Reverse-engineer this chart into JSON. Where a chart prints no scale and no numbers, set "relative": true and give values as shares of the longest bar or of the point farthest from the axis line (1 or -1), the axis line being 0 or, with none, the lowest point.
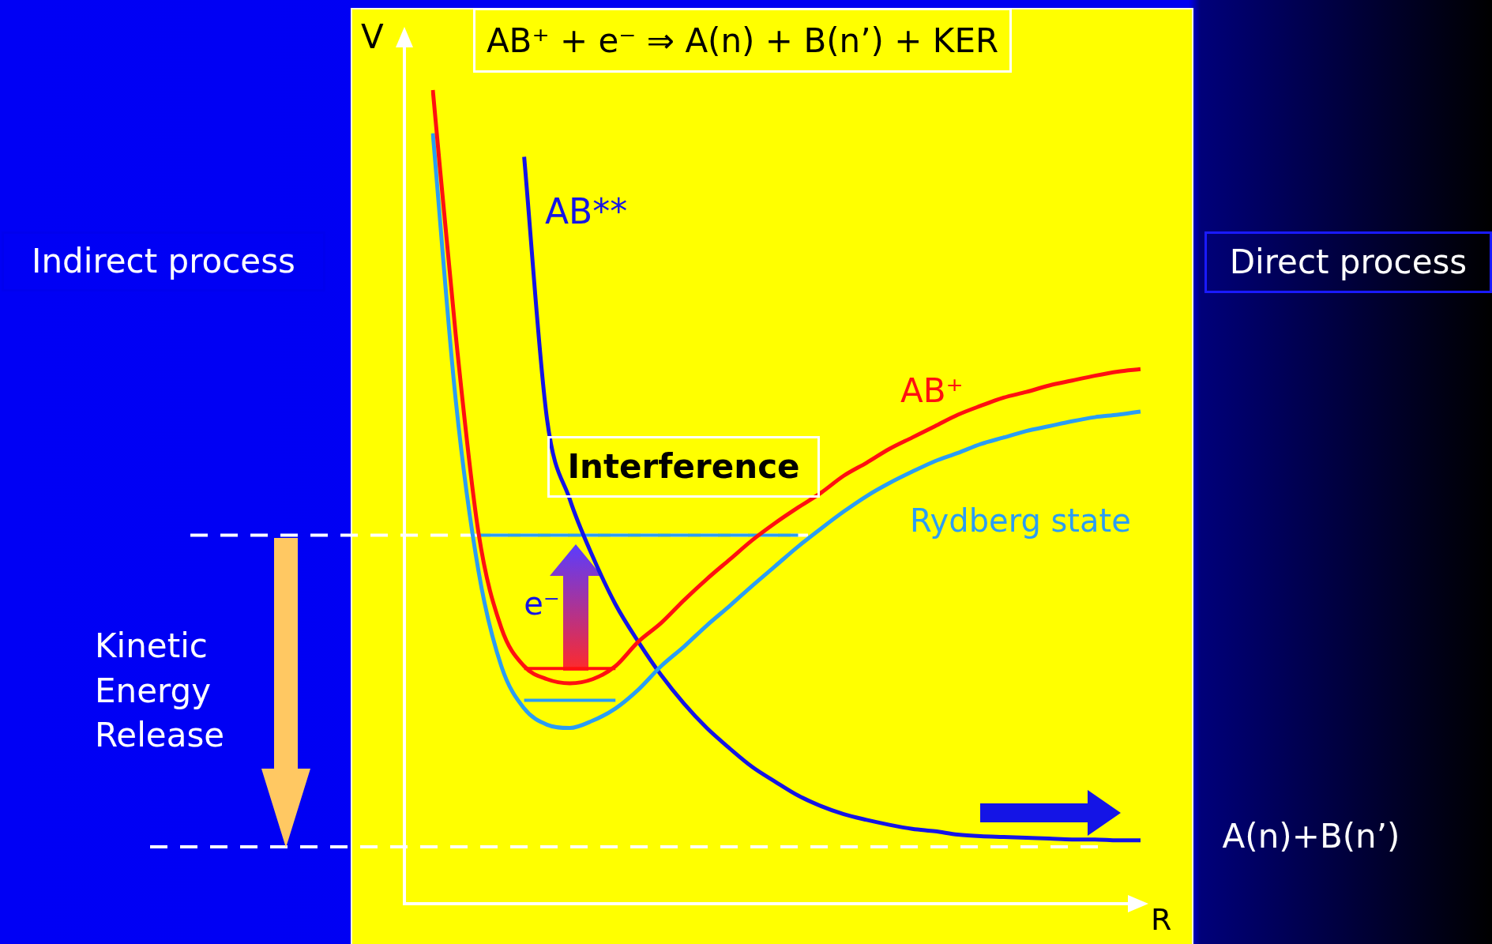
{
  "chart_data": {
    "type": "line",
    "relative": true,
    "title": "AB⁺ + e⁻ ⇒ A(n) + B(n’) + KER",
    "xlabel": "R",
    "ylabel": "V",
    "marker": "none",
    "line_style": "solid",
    "legend": false,
    "categories": [
      null,
      null,
      null,
      null,
      null,
      null,
      null,
      null,
      null,
      null,
      null,
      null,
      null,
      null,
      null,
      null,
      null,
      null,
      null,
      null,
      null,
      null,
      null,
      null,
      null,
      null,
      null,
      null,
      null,
      null,
      null,
      null
    ],
    "series": [
      {
        "name": "AB⁺",
        "color": "#ff1010",
        "values": [
          1.0,
          0.7,
          0.456,
          0.339,
          0.292,
          0.276,
          0.271,
          0.276,
          0.292,
          0.322,
          0.345,
          0.373,
          0.399,
          0.423,
          0.447,
          0.468,
          0.487,
          0.505,
          0.526,
          0.542,
          0.559,
          0.573,
          0.587,
          0.601,
          0.612,
          0.622,
          0.629,
          0.637,
          0.643,
          0.649,
          0.654,
          0.657
        ]
      },
      {
        "name": "Rydberg state",
        "color": "#2a9df4",
        "values": [
          0.947,
          0.62,
          0.409,
          0.292,
          0.24,
          0.22,
          0.216,
          0.225,
          0.24,
          0.263,
          0.292,
          0.316,
          0.342,
          0.366,
          0.391,
          0.415,
          0.439,
          0.461,
          0.482,
          0.501,
          0.517,
          0.531,
          0.544,
          0.554,
          0.565,
          0.573,
          0.581,
          0.587,
          0.593,
          0.598,
          0.601,
          0.605
        ]
      },
      {
        "name": "AB**",
        "color": "#1414e6",
        "values": [
          null,
          null,
          null,
          null,
          0.918,
          0.596,
          0.497,
          0.427,
          0.368,
          0.322,
          0.281,
          0.246,
          0.216,
          0.191,
          0.168,
          0.15,
          0.133,
          0.12,
          0.11,
          0.103,
          0.097,
          0.092,
          0.089,
          0.085,
          0.083,
          0.082,
          0.081,
          0.08,
          0.079,
          0.079,
          0.078,
          0.078
        ]
      },
      {
        "color": "#2a9df4",
        "values": [
          null,
          null,
          0.453,
          0.453,
          0.453,
          0.453,
          0.453,
          0.453,
          0.453,
          0.453,
          0.453,
          0.453,
          0.453,
          0.453,
          0.453,
          0.453,
          0.453,
          null,
          null,
          null,
          null,
          null,
          null,
          null,
          null,
          null,
          null,
          null,
          null,
          null,
          null,
          null
        ]
      },
      {
        "color": "#ff1010",
        "values": [
          null,
          null,
          null,
          null,
          0.289,
          0.289,
          0.289,
          0.289,
          0.289,
          null,
          null,
          null,
          null,
          null,
          null,
          null,
          null,
          null,
          null,
          null,
          null,
          null,
          null,
          null,
          null,
          null,
          null,
          null,
          null,
          null,
          null,
          null
        ]
      },
      {
        "color": "#2a9df4",
        "values": [
          null,
          null,
          null,
          null,
          0.25,
          0.25,
          0.25,
          0.25,
          0.25,
          null,
          null,
          null,
          null,
          null,
          null,
          null,
          null,
          null,
          null,
          null,
          null,
          null,
          null,
          null,
          null,
          null,
          null,
          null,
          null,
          null,
          null,
          null
        ]
      }
    ],
    "ref_lines": [
      {
        "axis": "y",
        "value": 0.453,
        "color": "#ffffff",
        "line_style": "dashed"
      },
      {
        "axis": "y",
        "value": 0.07,
        "color": "#ffffff",
        "line_style": "dashed"
      }
    ],
    "annotations": [
      "Interference",
      "Indirect process",
      "Direct process",
      "Kinetic\nEnergy\nRelease",
      "A(n)+B(n’)",
      "e⁻"
    ]
  }
}
